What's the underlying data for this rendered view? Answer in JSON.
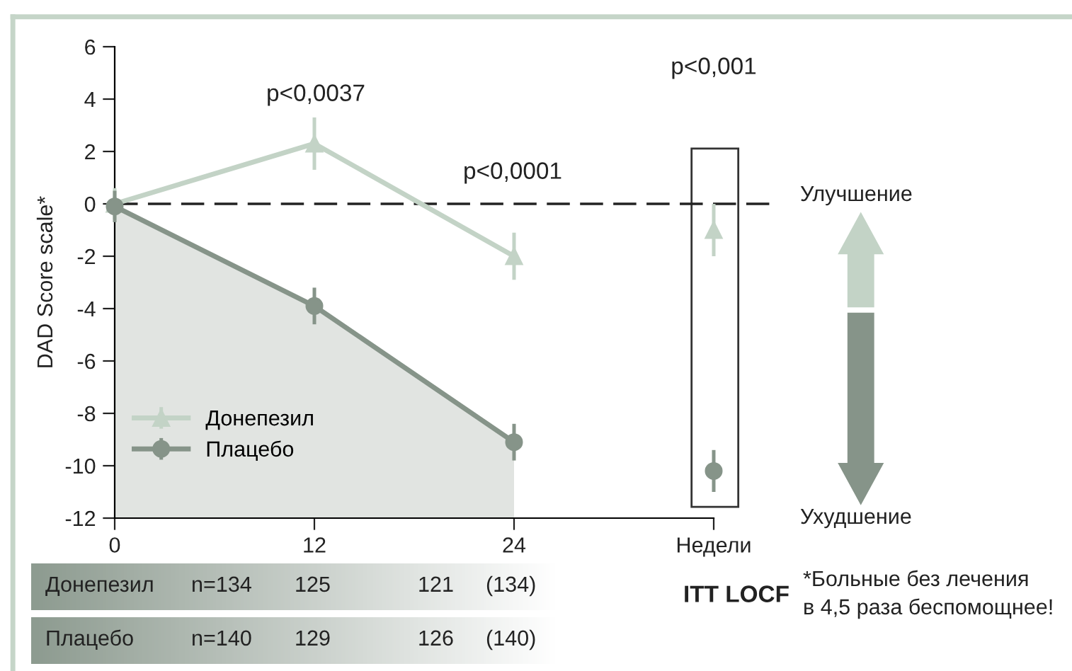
{
  "chart_data": {
    "type": "line",
    "ylabel": "DAD Score scale*",
    "xlim": [
      0,
      36
    ],
    "xticks": [
      0,
      12,
      24,
      {
        "value": 36,
        "label": "Недели"
      }
    ],
    "ylim": [
      -12,
      6
    ],
    "yticks": [
      6,
      4,
      2,
      0,
      -2,
      -4,
      -6,
      -8,
      -10,
      -12
    ],
    "grid": false,
    "legend": "bottom left",
    "series": [
      {
        "name": "Донепезил",
        "color": "#c3d3c6",
        "marker": "triangle",
        "x": [
          0,
          12,
          24
        ],
        "values": [
          0,
          2.3,
          -2.0
        ],
        "errors": [
          0.6,
          1.0,
          0.9
        ]
      },
      {
        "name": "Плацебо",
        "color": "#869489",
        "marker": "circle",
        "x": [
          0,
          12,
          24
        ],
        "values": [
          -0.1,
          -3.9,
          -9.1
        ],
        "errors": [
          0.6,
          0.7,
          0.7
        ],
        "lower": [
          -12,
          -12,
          -12
        ],
        "upper": [
          -0.1,
          -3.9,
          -9.1
        ]
      },
      {
        "color": "#c3d3c6",
        "marker": "triangle",
        "x": [
          36
        ],
        "values": [
          -1.0
        ],
        "errors": [
          1.0
        ]
      },
      {
        "color": "#869489",
        "marker": "circle",
        "x": [
          36
        ],
        "values": [
          -10.2
        ],
        "errors": [
          0.8
        ]
      }
    ],
    "ref_lines": [
      {
        "axis": "y",
        "value": 0,
        "color": "#222222",
        "line_style": "dashed"
      }
    ],
    "annotations": [
      "p<0,0037",
      "p<0,0001",
      "p<0,001",
      "Улучшение",
      "Ухудшение",
      "ITT LOCF",
      "*Больные без лечения\nв 4,5 раза беспомощнее!",
      "Донепезил",
      "n=134",
      "125",
      "121",
      "(134)",
      "Плацебо",
      "n=140",
      "129",
      "126",
      "(140)"
    ]
  }
}
